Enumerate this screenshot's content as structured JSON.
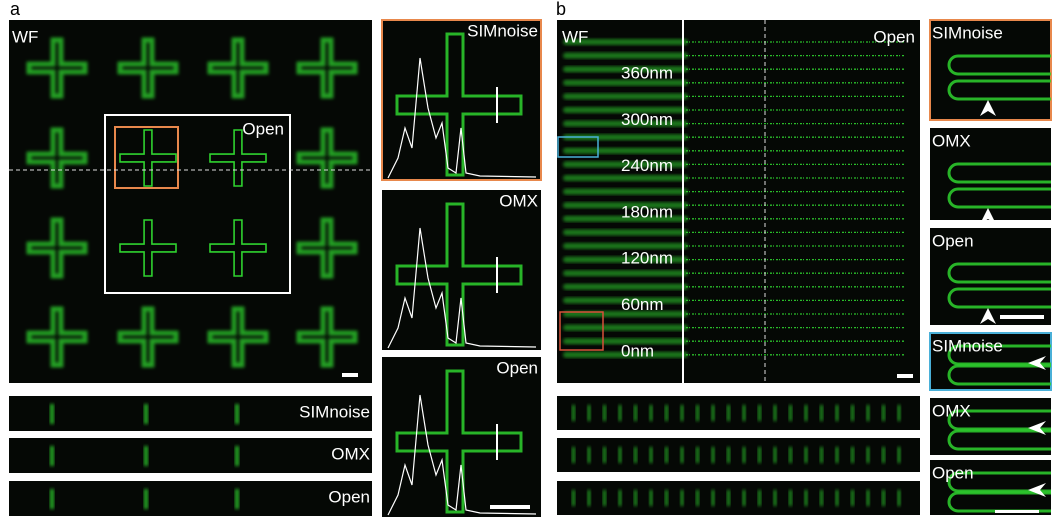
{
  "panel_a": {
    "label": "a",
    "main": {
      "left_label": "WF",
      "box_label": "Open"
    },
    "insets": [
      "SIMnoise",
      "OMX",
      "Open"
    ],
    "strips": [
      "SIMnoise",
      "OMX",
      "Open"
    ]
  },
  "panel_b": {
    "label": "b",
    "main": {
      "left_label": "WF",
      "right_label": "Open",
      "spacings": [
        "360nm",
        "300nm",
        "240nm",
        "180nm",
        "120nm",
        "60nm",
        "0nm"
      ]
    },
    "insets": [
      "SIMnoise",
      "OMX",
      "Open",
      "SIMnoise",
      "OMX",
      "Open"
    ]
  }
}
